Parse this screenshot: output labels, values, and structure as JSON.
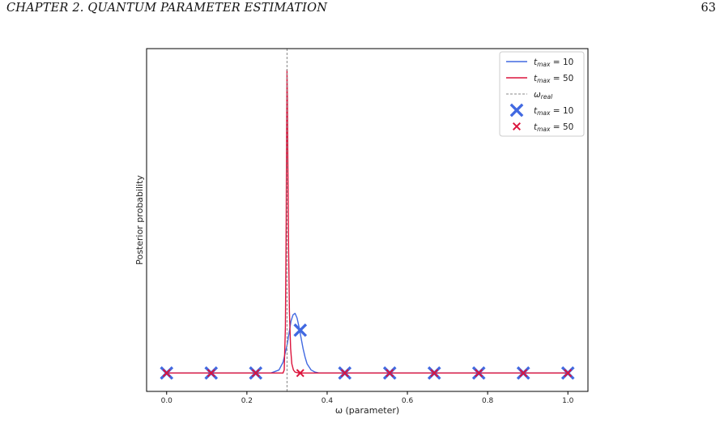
{
  "page": {
    "running_header": "CHAPTER 2.  QUANTUM PARAMETER ESTIMATION",
    "page_number": "63"
  },
  "chart_data": {
    "type": "line",
    "title": "",
    "xlabel": "ω (parameter)",
    "ylabel": "Posterior probability",
    "xlim": [
      -0.05,
      1.05
    ],
    "ylim": [
      -0.06,
      1.06
    ],
    "x_ticks": [
      "0.0",
      "0.2",
      "0.4",
      "0.6",
      "0.8",
      "1.0"
    ],
    "y_ticks": [],
    "grid": false,
    "legend_position": "top-right",
    "omega_real": 0.3,
    "series": [
      {
        "name": "t_max = 10",
        "label_main": "t",
        "label_sub": "max",
        "label_rest": " = 10",
        "kind": "line",
        "color": "#4169e1",
        "x": [
          0.0,
          0.1,
          0.2,
          0.26,
          0.28,
          0.29,
          0.3,
          0.305,
          0.31,
          0.315,
          0.32,
          0.325,
          0.33,
          0.335,
          0.34,
          0.345,
          0.35,
          0.36,
          0.37,
          0.38,
          0.4,
          0.5,
          1.0
        ],
        "y": [
          0.0,
          0.0,
          0.0,
          0.0,
          0.01,
          0.035,
          0.09,
          0.13,
          0.17,
          0.19,
          0.195,
          0.18,
          0.15,
          0.115,
          0.08,
          0.052,
          0.03,
          0.01,
          0.003,
          0.0,
          0.0,
          0.0,
          0.0
        ]
      },
      {
        "name": "t_max = 50",
        "label_main": "t",
        "label_sub": "max",
        "label_rest": " = 50",
        "kind": "line",
        "color": "#dc143c",
        "x": [
          0.0,
          0.1,
          0.2,
          0.29,
          0.293,
          0.296,
          0.298,
          0.299,
          0.3,
          0.301,
          0.302,
          0.304,
          0.306,
          0.309,
          0.312,
          0.316,
          0.32,
          0.33,
          0.4,
          1.0
        ],
        "y": [
          0.0,
          0.0,
          0.0,
          0.0,
          0.01,
          0.15,
          0.5,
          0.8,
          0.99,
          0.9,
          0.7,
          0.4,
          0.2,
          0.08,
          0.03,
          0.01,
          0.003,
          0.0,
          0.0,
          0.0
        ]
      },
      {
        "name": "ω_real",
        "label_main": "ω",
        "label_sub": "real",
        "label_rest": "",
        "kind": "vline",
        "color": "#888888"
      },
      {
        "name": "t_max = 10",
        "label_main": "t",
        "label_sub": "max",
        "label_rest": " = 10",
        "kind": "markers",
        "marker": "X-large",
        "color": "#4169e1",
        "x": [
          0.0,
          0.111,
          0.222,
          0.333,
          0.444,
          0.556,
          0.667,
          0.778,
          0.889,
          1.0
        ],
        "y": [
          0.0,
          0.0,
          0.0,
          0.14,
          0.0,
          0.0,
          0.0,
          0.0,
          0.0,
          0.0
        ]
      },
      {
        "name": "t_max = 50",
        "label_main": "t",
        "label_sub": "max",
        "label_rest": " = 50",
        "kind": "markers",
        "marker": "X-small",
        "color": "#dc143c",
        "x": [
          0.0,
          0.111,
          0.222,
          0.333,
          0.444,
          0.556,
          0.667,
          0.778,
          0.889,
          1.0
        ],
        "y": [
          0.0,
          0.0,
          0.0,
          0.0,
          0.0,
          0.0,
          0.0,
          0.0,
          0.0,
          0.0
        ]
      }
    ]
  }
}
